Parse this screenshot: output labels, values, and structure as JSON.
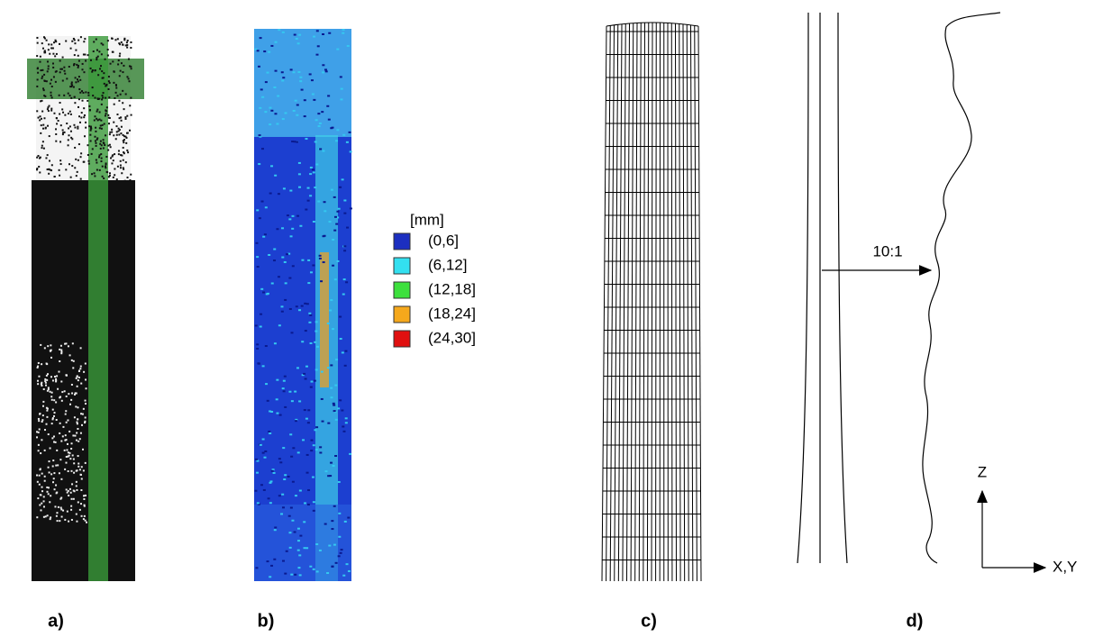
{
  "panels": [
    {
      "label": "a)"
    },
    {
      "label": "b)"
    },
    {
      "label": "c)"
    },
    {
      "label": "d)"
    }
  ],
  "legend": {
    "title": "[mm]",
    "items": [
      {
        "label": "(0,6]",
        "color": "#1c2fc0"
      },
      {
        "label": "(6,12]",
        "color": "#33e0f0"
      },
      {
        "label": "(12,18]",
        "color": "#3de03d"
      },
      {
        "label": "(18,24]",
        "color": "#f5a81c"
      },
      {
        "label": "(24,30]",
        "color": "#e01010"
      }
    ]
  },
  "annotations": {
    "scale": "10:1",
    "z_axis": "Z",
    "xy_axis": "X,Y"
  }
}
